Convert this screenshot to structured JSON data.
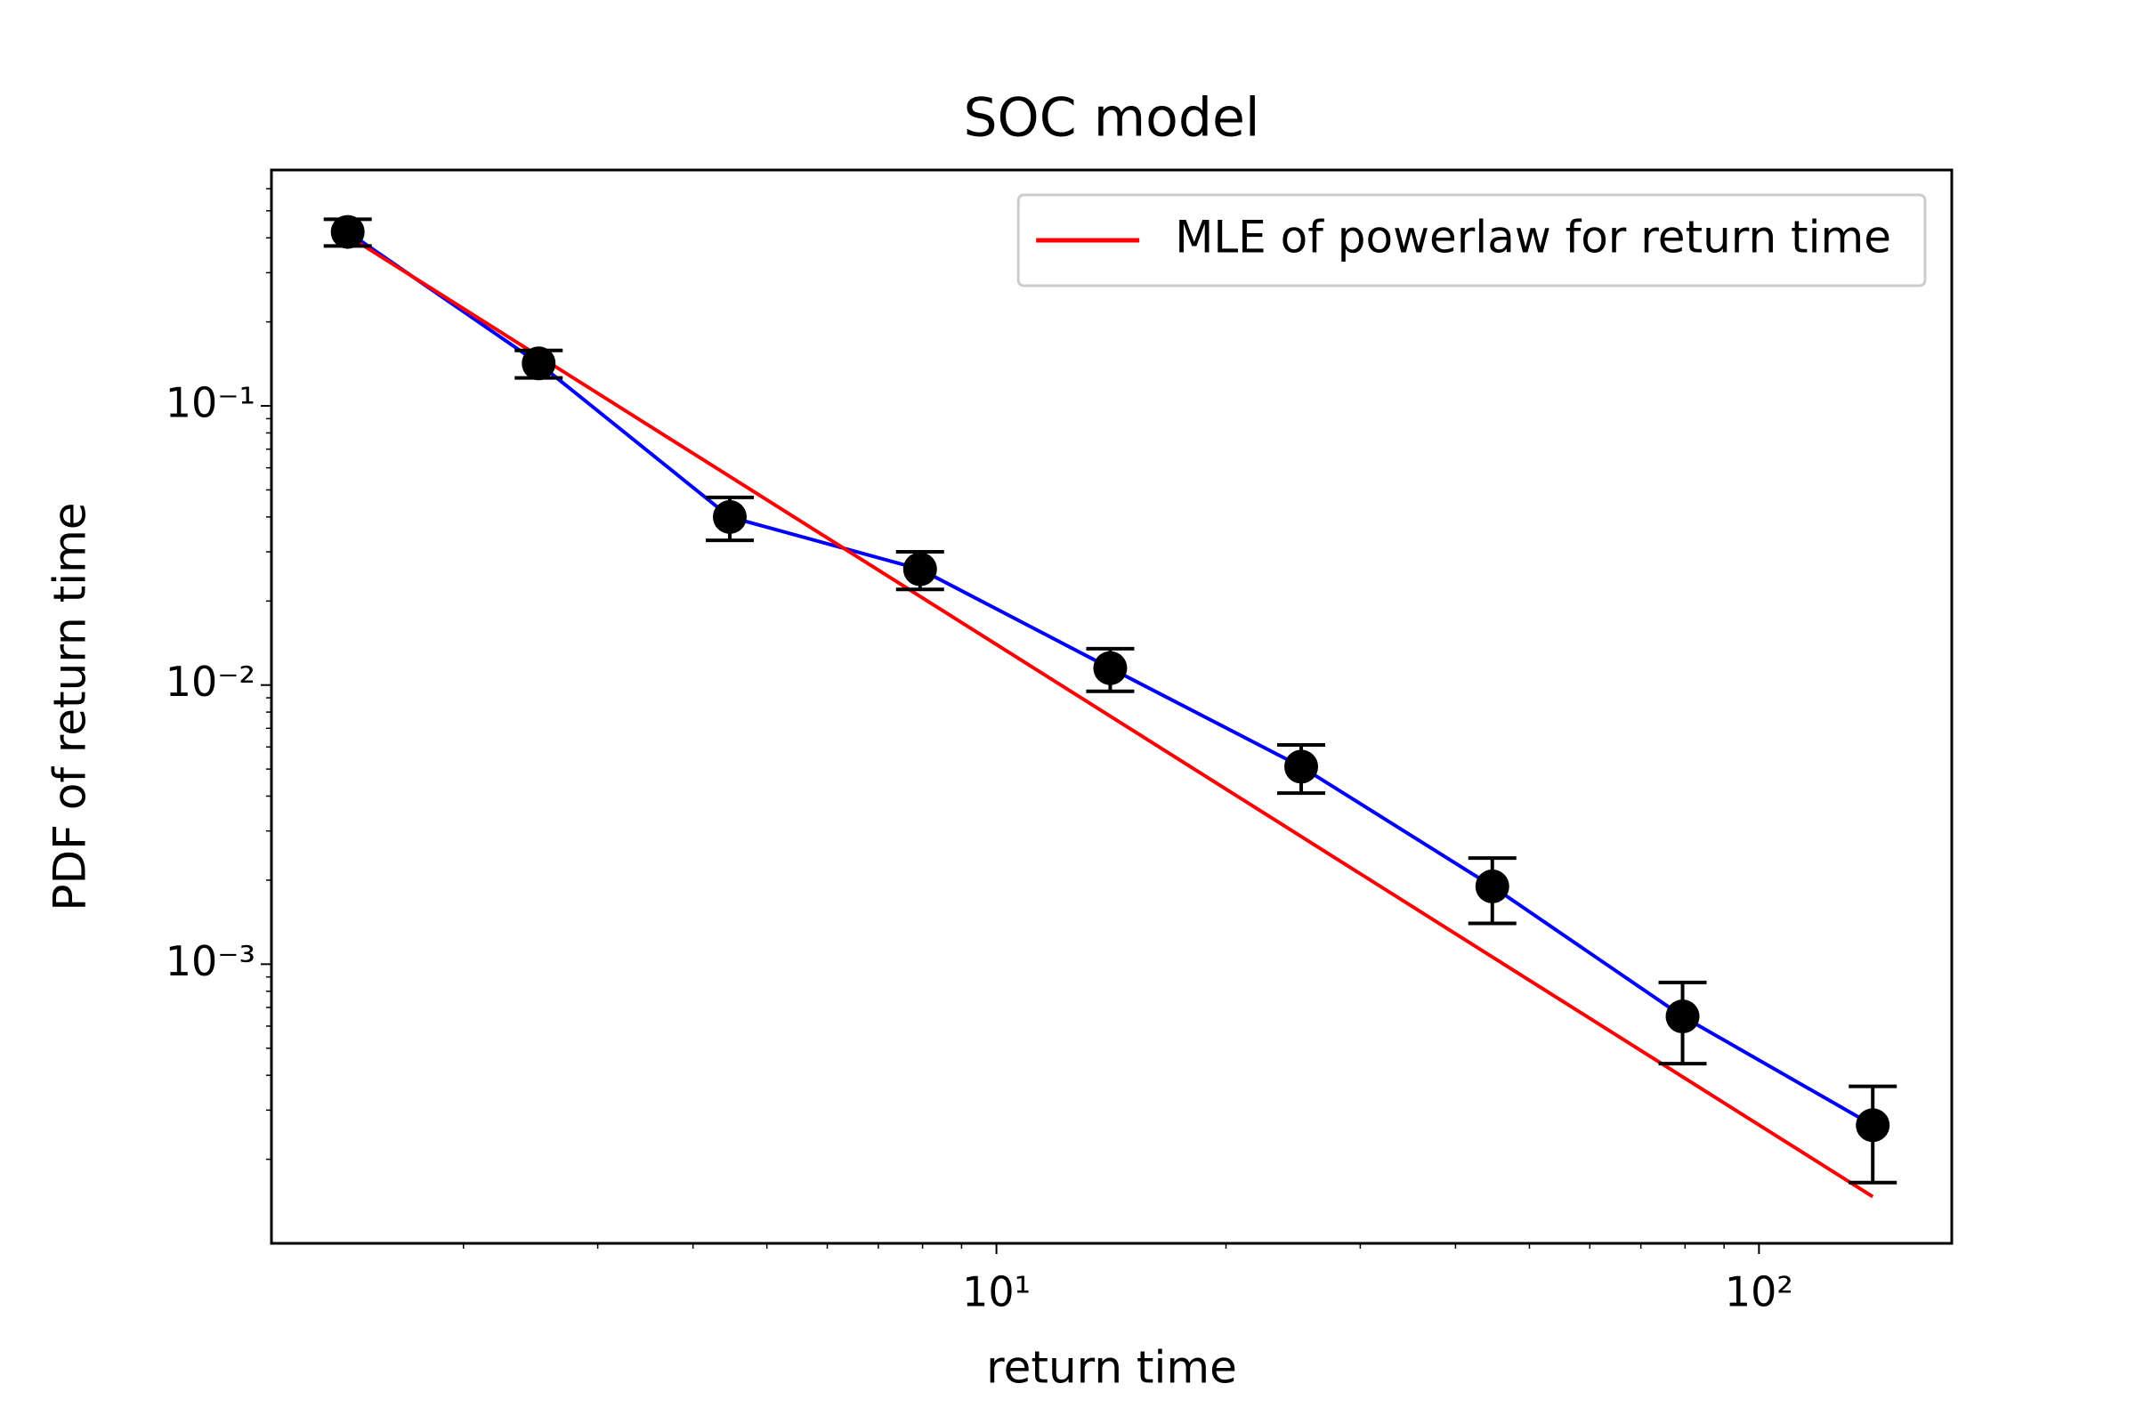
{
  "chart_data": {
    "type": "errorbar-loglog",
    "title": "SOC model",
    "xlabel": "return time",
    "ylabel": "PDF of return time",
    "xscale": "log",
    "yscale": "log",
    "xlim": [
      1.12,
      179
    ],
    "ylim": [
      0.0001,
      0.7
    ],
    "xticks": [
      {
        "value": 10,
        "label": "10¹"
      },
      {
        "value": 100,
        "label": "10²"
      }
    ],
    "yticks": [
      {
        "value": 0.001,
        "label": "10⁻³"
      },
      {
        "value": 0.01,
        "label": "10⁻²"
      },
      {
        "value": 0.1,
        "label": "10⁻¹"
      }
    ],
    "xminorticks": [
      2,
      3,
      4,
      5,
      6,
      7,
      8,
      9,
      20,
      30,
      40,
      50,
      60,
      70,
      80,
      90
    ],
    "yminorticks": [
      0.0002,
      0.0003,
      0.0004,
      0.0005,
      0.0006,
      0.0007,
      0.0008,
      0.0009,
      0.002,
      0.003,
      0.004,
      0.005,
      0.006,
      0.007,
      0.008,
      0.009,
      0.02,
      0.03,
      0.04,
      0.05,
      0.06,
      0.07,
      0.08,
      0.09,
      0.2,
      0.3,
      0.4,
      0.5,
      0.6
    ],
    "legend": "upper right",
    "series": [
      {
        "color": "#0000ff",
        "marker_color": "#000000",
        "x": [
          1.41,
          2.51,
          4.47,
          7.94,
          14.1,
          25.1,
          44.7,
          79.4,
          141
        ],
        "values": [
          0.42,
          0.142,
          0.04,
          0.026,
          0.0115,
          0.0051,
          0.0019,
          0.00065,
          0.000265
        ],
        "errors": [
          0.046,
          0.016,
          0.007,
          0.004,
          0.002,
          0.001,
          0.0005,
          0.00021,
          0.0001
        ]
      },
      {
        "name": "MLE of powerlaw for return time",
        "color": "#ff0000",
        "x": [
          1.41,
          141
        ],
        "values": [
          0.407,
          0.000147
        ]
      }
    ]
  }
}
